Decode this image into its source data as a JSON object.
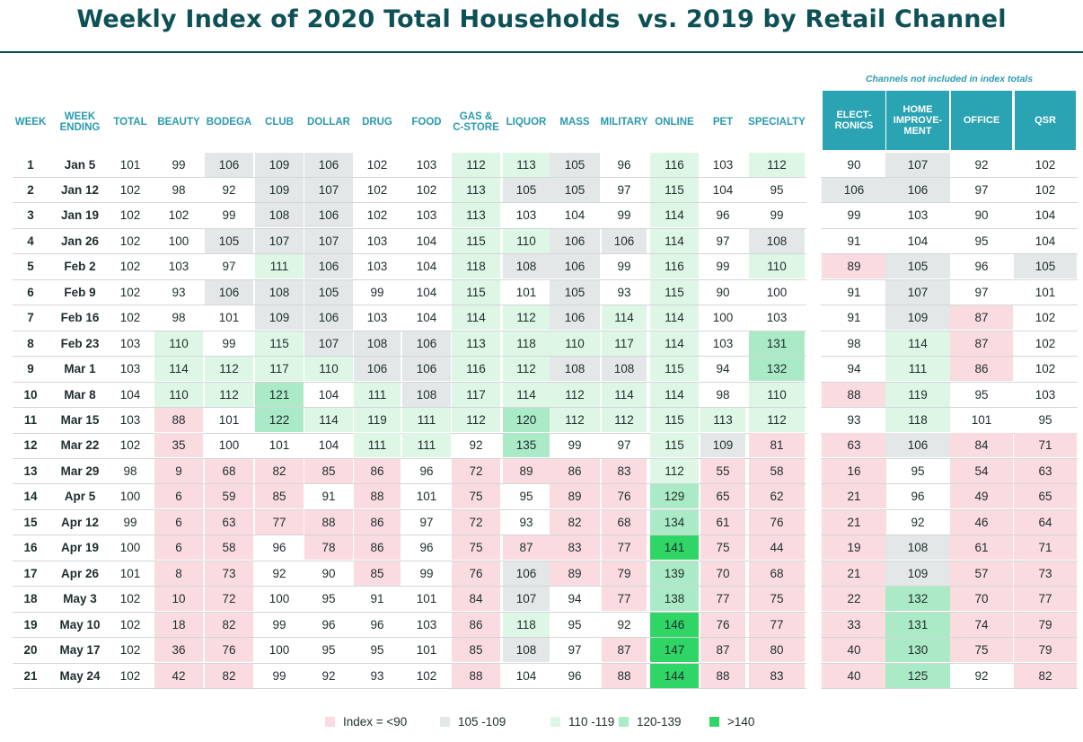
{
  "title": "Weekly Index of 2020 Total Households  vs. 2019 by Retail Channel",
  "note": "Channels not included in index totals",
  "colors": {
    "title": "#0d5156",
    "header": "#2a9aad",
    "side_header_bg": "#2aa3b3",
    "low": "#fadbe0",
    "a": "#e3e7e8",
    "b": "#ddf6e5",
    "c": "#aaeac6",
    "d": "#2fd665"
  },
  "legend": [
    {
      "label": "Index = <90",
      "cls": "low"
    },
    {
      "label": "105 -109",
      "cls": "a"
    },
    {
      "label": "110 -119",
      "cls": "b"
    },
    {
      "label": "120-139",
      "cls": "c"
    },
    {
      "label": ">140",
      "cls": "d"
    }
  ],
  "chart_data": {
    "type": "table",
    "columns": [
      "WEEK",
      "WEEK ENDING",
      "TOTAL",
      "BEAUTY",
      "BODEGA",
      "CLUB",
      "DOLLAR",
      "DRUG",
      "FOOD",
      "GAS & C-STORE",
      "LIQUOR",
      "MASS",
      "MILITARY",
      "ONLINE",
      "PET",
      "SPECIALTY"
    ],
    "side_columns": [
      "ELECT-RONICS",
      "HOME IMPROVE-MENT",
      "OFFICE",
      "QSR"
    ],
    "rows": [
      {
        "week": "1",
        "ending": "Jan 5",
        "total": 101,
        "values": [
          99,
          106,
          109,
          106,
          102,
          103,
          112,
          113,
          105,
          96,
          116,
          103,
          112
        ],
        "side": [
          90,
          107,
          92,
          102
        ]
      },
      {
        "week": "2",
        "ending": "Jan 12",
        "total": 102,
        "values": [
          98,
          92,
          109,
          107,
          102,
          102,
          113,
          105,
          105,
          97,
          115,
          104,
          95
        ],
        "side": [
          106,
          106,
          97,
          102
        ]
      },
      {
        "week": "3",
        "ending": "Jan 19",
        "total": 102,
        "values": [
          102,
          99,
          108,
          106,
          102,
          103,
          113,
          103,
          104,
          99,
          114,
          96,
          99
        ],
        "side": [
          99,
          103,
          90,
          104
        ]
      },
      {
        "week": "4",
        "ending": "Jan 26",
        "total": 102,
        "values": [
          100,
          105,
          107,
          107,
          103,
          104,
          115,
          110,
          106,
          106,
          114,
          97,
          108
        ],
        "side": [
          91,
          104,
          95,
          104
        ]
      },
      {
        "week": "5",
        "ending": "Feb 2",
        "total": 102,
        "values": [
          103,
          97,
          111,
          106,
          103,
          104,
          118,
          108,
          106,
          99,
          116,
          99,
          110
        ],
        "side": [
          89,
          105,
          96,
          105
        ]
      },
      {
        "week": "6",
        "ending": "Feb 9",
        "total": 102,
        "values": [
          93,
          106,
          108,
          105,
          99,
          104,
          115,
          101,
          105,
          93,
          115,
          90,
          100
        ],
        "side": [
          91,
          107,
          97,
          101
        ]
      },
      {
        "week": "7",
        "ending": "Feb 16",
        "total": 102,
        "values": [
          98,
          101,
          109,
          106,
          103,
          104,
          114,
          112,
          106,
          114,
          114,
          100,
          103
        ],
        "side": [
          91,
          109,
          87,
          102
        ]
      },
      {
        "week": "8",
        "ending": "Feb 23",
        "total": 103,
        "values": [
          110,
          99,
          115,
          107,
          108,
          106,
          113,
          118,
          110,
          117,
          114,
          103,
          131
        ],
        "side": [
          98,
          114,
          87,
          102
        ]
      },
      {
        "week": "9",
        "ending": "Mar 1",
        "total": 103,
        "values": [
          114,
          112,
          117,
          110,
          106,
          106,
          116,
          112,
          108,
          108,
          115,
          94,
          132
        ],
        "side": [
          94,
          111,
          86,
          102
        ]
      },
      {
        "week": "10",
        "ending": "Mar 8",
        "total": 104,
        "values": [
          110,
          112,
          121,
          104,
          111,
          108,
          117,
          114,
          112,
          114,
          114,
          98,
          110
        ],
        "side": [
          88,
          119,
          95,
          103
        ]
      },
      {
        "week": "11",
        "ending": "Mar 15",
        "total": 103,
        "values": [
          88,
          101,
          122,
          114,
          119,
          111,
          112,
          120,
          112,
          112,
          115,
          113,
          112
        ],
        "side": [
          93,
          118,
          101,
          95
        ]
      },
      {
        "week": "12",
        "ending": "Mar 22",
        "total": 102,
        "values": [
          35,
          100,
          101,
          104,
          111,
          111,
          92,
          135,
          99,
          97,
          115,
          109,
          81
        ],
        "side": [
          63,
          106,
          84,
          71
        ]
      },
      {
        "week": "13",
        "ending": "Mar 29",
        "total": 98,
        "values": [
          9,
          68,
          82,
          85,
          86,
          96,
          72,
          89,
          86,
          83,
          112,
          55,
          58
        ],
        "side": [
          16,
          95,
          54,
          63
        ]
      },
      {
        "week": "14",
        "ending": "Apr 5",
        "total": 100,
        "values": [
          6,
          59,
          85,
          91,
          88,
          101,
          75,
          95,
          89,
          76,
          129,
          65,
          62
        ],
        "side": [
          21,
          96,
          49,
          65
        ]
      },
      {
        "week": "15",
        "ending": "Apr 12",
        "total": 99,
        "values": [
          6,
          63,
          77,
          88,
          86,
          97,
          72,
          93,
          82,
          68,
          134,
          61,
          76
        ],
        "side": [
          21,
          92,
          46,
          64
        ]
      },
      {
        "week": "16",
        "ending": "Apr 19",
        "total": 100,
        "values": [
          6,
          58,
          96,
          78,
          86,
          96,
          75,
          87,
          83,
          77,
          141,
          75,
          44
        ],
        "side": [
          19,
          108,
          61,
          71
        ]
      },
      {
        "week": "17",
        "ending": "Apr 26",
        "total": 101,
        "values": [
          8,
          73,
          92,
          90,
          85,
          99,
          76,
          106,
          89,
          79,
          139,
          70,
          68
        ],
        "side": [
          21,
          109,
          57,
          73
        ]
      },
      {
        "week": "18",
        "ending": "May 3",
        "total": 102,
        "values": [
          10,
          72,
          100,
          95,
          91,
          101,
          84,
          107,
          94,
          77,
          138,
          77,
          75
        ],
        "side": [
          22,
          132,
          70,
          77
        ]
      },
      {
        "week": "19",
        "ending": "May 10",
        "total": 102,
        "values": [
          18,
          82,
          99,
          96,
          96,
          103,
          86,
          118,
          95,
          92,
          146,
          76,
          77
        ],
        "side": [
          33,
          131,
          74,
          79
        ]
      },
      {
        "week": "20",
        "ending": "May 17",
        "total": 102,
        "values": [
          36,
          76,
          100,
          95,
          95,
          101,
          85,
          108,
          97,
          87,
          147,
          87,
          80
        ],
        "side": [
          40,
          130,
          75,
          79
        ]
      },
      {
        "week": "21",
        "ending": "May 24",
        "total": 102,
        "values": [
          42,
          82,
          99,
          92,
          93,
          102,
          88,
          104,
          96,
          88,
          144,
          88,
          83
        ],
        "side": [
          40,
          125,
          92,
          82
        ]
      }
    ]
  }
}
